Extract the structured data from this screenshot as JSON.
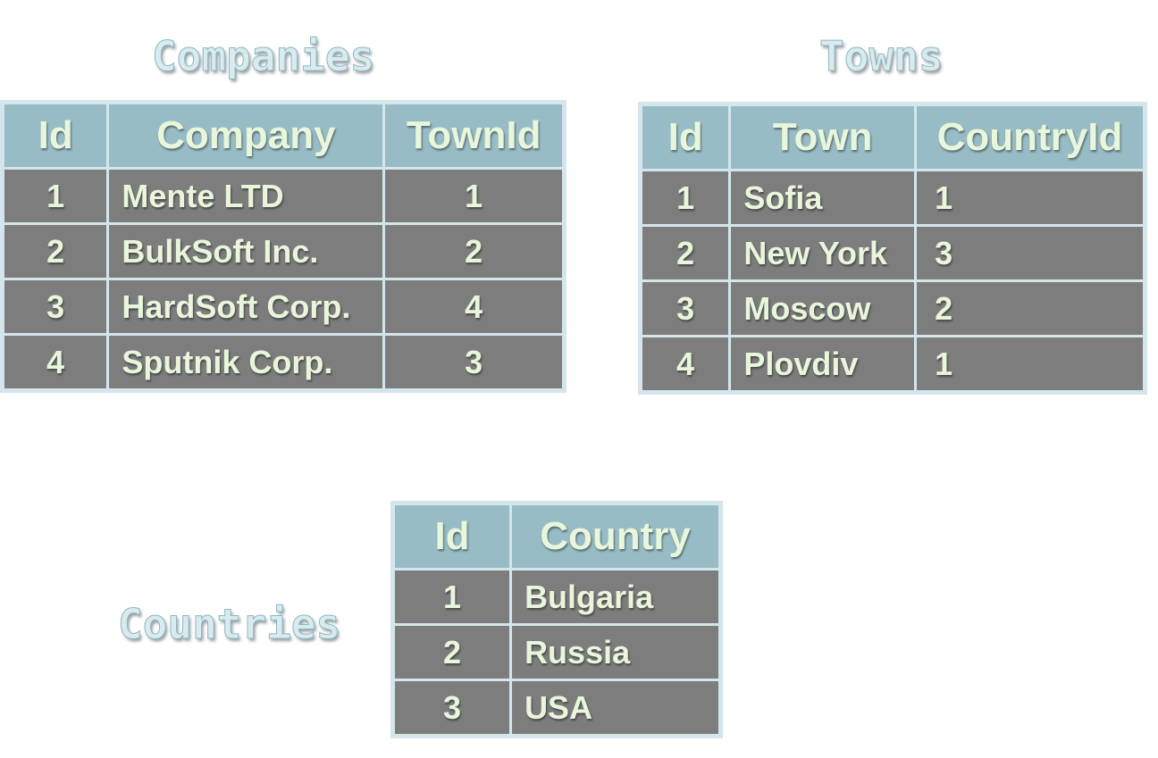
{
  "companies": {
    "title": "Companies",
    "headers": [
      "Id",
      "Company",
      "TownId"
    ],
    "rows": [
      [
        "1",
        "Mente LTD",
        "1"
      ],
      [
        "2",
        "BulkSoft Inc.",
        "2"
      ],
      [
        "3",
        "HardSoft Corp.",
        "4"
      ],
      [
        "4",
        "Sputnik Corp.",
        "3"
      ]
    ]
  },
  "towns": {
    "title": "Towns",
    "headers": [
      "Id",
      "Town",
      "CountryId"
    ],
    "rows": [
      [
        "1",
        "Sofia",
        "1"
      ],
      [
        "2",
        "New York",
        "3"
      ],
      [
        "3",
        "Moscow",
        "2"
      ],
      [
        "4",
        "Plovdiv",
        "1"
      ]
    ]
  },
  "countries": {
    "title": "Countries",
    "headers": [
      "Id",
      "Country"
    ],
    "rows": [
      [
        "1",
        "Bulgaria"
      ],
      [
        "2",
        "Russia"
      ],
      [
        "3",
        "USA"
      ]
    ]
  },
  "colors": {
    "header_bg": "#98bcc5",
    "cell_bg": "#7d7d7d",
    "frame": "#d4e6ec",
    "text": "#e8f6dc"
  }
}
